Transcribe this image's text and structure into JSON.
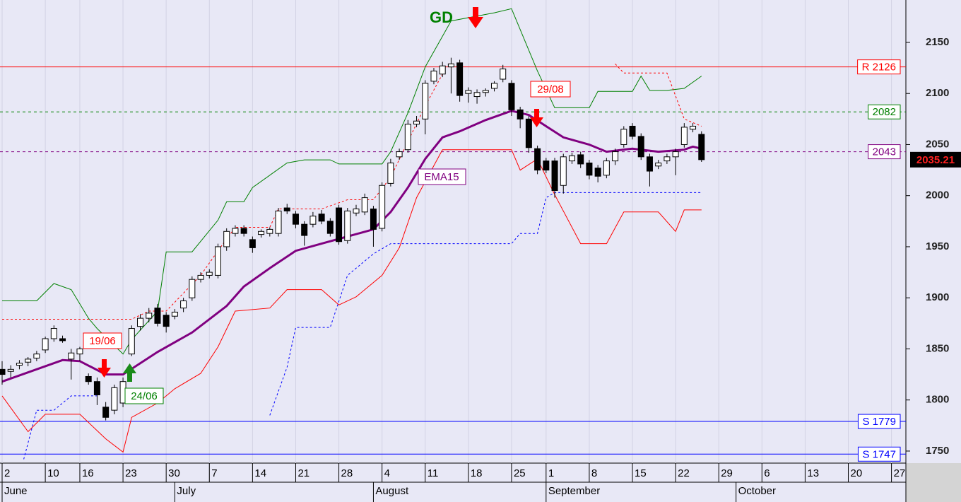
{
  "chart_data": {
    "type": "candlestick",
    "open": [
      1830,
      1828,
      1834,
      1837,
      1841,
      1849,
      1860,
      1860,
      1840,
      1845,
      1823,
      1818,
      1793,
      1790,
      1797,
      1845,
      1872,
      1880,
      1890,
      1883,
      1882,
      1890,
      1900,
      1918,
      1922,
      1922,
      1950,
      1963,
      1968,
      1957,
      1962,
      1963,
      1963,
      1988,
      1982,
      1972,
      1972,
      1982,
      1975,
      1988,
      1956,
      1983,
      1984,
      1987,
      1968,
      2012,
      2038,
      2045,
      2070,
      2075,
      2112,
      2119,
      2126,
      2130,
      2100,
      2097,
      2101,
      2105,
      2114,
      2110,
      2084,
      2075,
      2046,
      2034,
      2034,
      2010,
      2034,
      2040,
      2032,
      2027,
      2020,
      2034,
      2050,
      2068,
      2058,
      2038,
      2029,
      2034,
      2038,
      2050,
      2065,
      2060
    ],
    "high": [
      1838,
      1834,
      1839,
      1842,
      1848,
      1862,
      1873,
      1863,
      1850,
      1852,
      1826,
      1822,
      1798,
      1815,
      1822,
      1873,
      1884,
      1890,
      1894,
      1886,
      1889,
      1900,
      1921,
      1925,
      1928,
      1953,
      1968,
      1971,
      1971,
      1960,
      1967,
      1969,
      1988,
      1992,
      1985,
      1975,
      1984,
      1986,
      1978,
      1991,
      1988,
      1991,
      2002,
      1990,
      2013,
      2036,
      2046,
      2074,
      2078,
      2113,
      2125,
      2131,
      2135,
      2133,
      2106,
      2104,
      2105,
      2112,
      2128,
      2113,
      2087,
      2078,
      2049,
      2037,
      2037,
      2041,
      2042,
      2043,
      2035,
      2030,
      2037,
      2046,
      2068,
      2071,
      2061,
      2041,
      2035,
      2041,
      2046,
      2071,
      2071,
      2063
    ],
    "low": [
      1815,
      1822,
      1830,
      1833,
      1838,
      1846,
      1857,
      1856,
      1820,
      1838,
      1815,
      1795,
      1780,
      1786,
      1793,
      1843,
      1868,
      1876,
      1872,
      1866,
      1879,
      1886,
      1897,
      1915,
      1919,
      1919,
      1946,
      1960,
      1960,
      1944,
      1959,
      1960,
      1960,
      1982,
      1968,
      1951,
      1969,
      1972,
      1960,
      1952,
      1953,
      1980,
      1981,
      1950,
      1965,
      2009,
      2035,
      2042,
      2067,
      2060,
      2109,
      2116,
      2100,
      2092,
      2091,
      2090,
      2097,
      2102,
      2111,
      2078,
      2066,
      2042,
      2021,
      2022,
      1998,
      2002,
      2031,
      2027,
      2016,
      2013,
      2017,
      2030,
      2047,
      2055,
      2035,
      2009,
      2026,
      2031,
      2020,
      2047,
      2062,
      2033
    ],
    "close": [
      1825,
      1830,
      1836,
      1840,
      1845,
      1860,
      1870,
      1858,
      1846,
      1850,
      1818,
      1805,
      1783,
      1812,
      1818,
      1870,
      1880,
      1885,
      1875,
      1872,
      1886,
      1897,
      1918,
      1922,
      1925,
      1950,
      1965,
      1968,
      1963,
      1949,
      1965,
      1967,
      1985,
      1985,
      1972,
      1961,
      1980,
      1975,
      1963,
      1955,
      1985,
      1987,
      1998,
      1967,
      2010,
      2032,
      2043,
      2070,
      2073,
      2110,
      2122,
      2127,
      2129,
      2098,
      2103,
      2101,
      2103,
      2110,
      2124,
      2084,
      2075,
      2047,
      2025,
      2025,
      2005,
      2038,
      2039,
      2031,
      2020,
      2019,
      2034,
      2043,
      2065,
      2058,
      2038,
      2024,
      2032,
      2038,
      2043,
      2067,
      2068,
      2035.21
    ],
    "up_color": "#ffffff",
    "down_color": "#000000",
    "last_price": 2035.21,
    "xlim": [
      -0.246,
      104.67
    ],
    "ylim": [
      1738.2,
      2191.5
    ],
    "yticks": [
      1750,
      1800,
      1850,
      1900,
      1950,
      2000,
      2050,
      2100,
      2150
    ],
    "xticks": [
      {
        "value": 0,
        "label": "2"
      },
      {
        "value": 5,
        "label": "10"
      },
      {
        "value": 9,
        "label": "16"
      },
      {
        "value": 14,
        "label": "23"
      },
      {
        "value": 19,
        "label": "30"
      },
      {
        "value": 24,
        "label": "7"
      },
      {
        "value": 29,
        "label": "14"
      },
      {
        "value": 34,
        "label": "21"
      },
      {
        "value": 39,
        "label": "28"
      },
      {
        "value": 44,
        "label": "4"
      },
      {
        "value": 49,
        "label": "11"
      },
      {
        "value": 54,
        "label": "18"
      },
      {
        "value": 59,
        "label": "25"
      },
      {
        "value": 63,
        "label": "1"
      },
      {
        "value": 68,
        "label": "8"
      },
      {
        "value": 73,
        "label": "15"
      },
      {
        "value": 78,
        "label": "22"
      },
      {
        "value": 83,
        "label": "29"
      },
      {
        "value": 88,
        "label": "6"
      },
      {
        "value": 93,
        "label": "13"
      },
      {
        "value": 98,
        "label": "20"
      },
      {
        "value": 103,
        "label": "27"
      }
    ],
    "month_ticks": [
      {
        "value": 0,
        "label": "June"
      },
      {
        "value": 20,
        "label": "July"
      },
      {
        "value": 43,
        "label": "August"
      },
      {
        "value": 63,
        "label": "September"
      },
      {
        "value": 85,
        "label": "October"
      }
    ],
    "grid": "x",
    "lines": [
      {
        "color": "#800080",
        "width": 3,
        "dash": "none",
        "x": [
          0,
          7,
          9,
          12,
          14,
          18,
          22,
          26,
          28,
          31,
          34,
          37,
          40,
          43,
          45,
          47,
          49,
          51,
          53,
          56,
          59,
          61,
          63,
          65,
          68,
          70,
          73,
          76,
          79,
          80,
          81
        ],
        "values": [
          1818,
          1839,
          1838,
          1825,
          1825,
          1847,
          1866,
          1892,
          1911,
          1929,
          1946,
          1953,
          1960,
          1967,
          1984,
          2008,
          2036,
          2057,
          2063,
          2074,
          2083,
          2079,
          2068,
          2057,
          2050,
          2043,
          2046,
          2043,
          2045,
          2048,
          2046
        ]
      },
      {
        "color": "#008000",
        "width": 1,
        "dash": "none",
        "x": [
          0,
          4,
          6,
          8,
          10,
          11,
          14,
          15,
          18,
          19,
          22,
          25,
          26,
          28,
          29,
          33,
          35,
          38,
          39,
          44,
          45,
          47,
          49,
          52,
          57,
          59,
          62,
          64,
          68,
          69,
          73,
          74,
          75,
          77,
          79,
          81
        ],
        "values": [
          1897,
          1897,
          1914,
          1908,
          1880,
          1870,
          1845,
          1859,
          1887,
          1945,
          1945,
          1976,
          1994,
          1994,
          2008,
          2032,
          2035,
          2035,
          2031,
          2031,
          2043,
          2081,
          2126,
          2171,
          2179,
          2183,
          2122,
          2086,
          2086,
          2102,
          2102,
          2117,
          2103,
          2103,
          2105,
          2117
        ]
      },
      {
        "color": "#ff0000",
        "width": 1,
        "dash": "none",
        "x": [
          0,
          3,
          5,
          9,
          12,
          14,
          15,
          18,
          20,
          23,
          25,
          27,
          31,
          33,
          37,
          39,
          41,
          44,
          46,
          48,
          51,
          59,
          60,
          62,
          64,
          67,
          70,
          72,
          76,
          78,
          79,
          81
        ],
        "values": [
          1804,
          1769,
          1786,
          1786,
          1762,
          1749,
          1783,
          1797,
          1811,
          1826,
          1852,
          1887,
          1890,
          1908,
          1908,
          1893,
          1901,
          1922,
          1949,
          1998,
          2045,
          2045,
          2025,
          2036,
          2001,
          1953,
          1953,
          1984,
          1984,
          1965,
          1986,
          1986
        ]
      },
      {
        "color": "#ff0000",
        "width": 1,
        "dash": "3 3",
        "x": [
          0,
          15,
          17,
          19,
          23,
          25,
          27,
          31,
          32,
          37,
          40,
          43,
          45,
          47,
          49,
          51,
          60,
          71,
          72,
          77,
          79,
          81
        ],
        "values": [
          1879,
          1879,
          1887,
          1887,
          1922,
          1946,
          1969,
          1969,
          1987,
          1987,
          1996,
          1996,
          2018,
          2053,
          2088,
          2119,
          null,
          2129,
          2120,
          2120,
          2075,
          2068
        ]
      },
      {
        "color": "#0000ff",
        "width": 1,
        "dash": "3 3",
        "x": [
          2.5,
          4,
          6,
          8,
          11,
          12,
          31,
          33,
          34,
          38,
          40,
          43,
          45,
          47,
          59,
          60,
          62,
          63,
          64,
          81
        ],
        "values": [
          1742,
          1790,
          1790,
          1804,
          1804,
          null,
          1785,
          1832,
          1871,
          1871,
          1922,
          1943,
          1953,
          1953,
          1953,
          1963,
          1963,
          1998,
          2003,
          2003
        ]
      }
    ],
    "levels": [
      {
        "value": 2126,
        "label": "R 2126",
        "color": "#ff0000",
        "dash": "none"
      },
      {
        "value": 2082,
        "label": "2082",
        "color": "#008000",
        "dash": "4 4"
      },
      {
        "value": 2043,
        "label": "2043",
        "color": "#800080",
        "dash": "4 4"
      },
      {
        "value": 1779,
        "label": "S 1779",
        "color": "#0000ff",
        "dash": "none"
      },
      {
        "value": 1747,
        "label": "S 1747",
        "color": "#0000ff",
        "dash": "none"
      }
    ],
    "annotations": [
      {
        "text": "GD",
        "color": "#008000"
      },
      {
        "text": "19/06",
        "color": "#ff0000"
      },
      {
        "text": "24/06",
        "color": "#008000"
      },
      {
        "text": "29/08",
        "color": "#ff0000"
      },
      {
        "text": "EMA15",
        "color": "#800080"
      }
    ]
  }
}
